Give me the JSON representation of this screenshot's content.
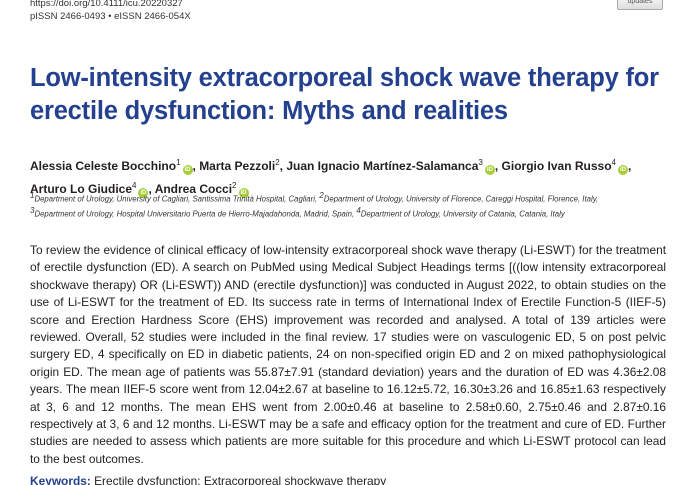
{
  "header": {
    "doi": "https://doi.org/10.4111/icu.20220327",
    "issn": "pISSN 2466-0493 • eISSN 2466-054X",
    "badge": "updates"
  },
  "title": "Low-intensity extracorporeal shock wave therapy for erectile dysfunction: Myths and realities",
  "authors": [
    {
      "name": "Alessia Celeste Bocchino",
      "sup": "1"
    },
    {
      "name": "Marta Pezzoli",
      "sup": "2"
    },
    {
      "name": "Juan Ignacio Martínez-Salamanca",
      "sup": "3"
    },
    {
      "name": "Giorgio Ivan Russo",
      "sup": "4"
    },
    {
      "name": "Arturo Lo Giudice",
      "sup": "4"
    },
    {
      "name": "Andrea Cocci",
      "sup": "2"
    }
  ],
  "affiliations": [
    {
      "sup": "1",
      "text": "Department of Urology, University of Cagliari, Santissima Trinità Hospital, Cagliari, "
    },
    {
      "sup": "2",
      "text": "Department of Urology, University of Florence, Careggi Hospital, Florence, Italy, "
    },
    {
      "sup": "3",
      "text": "Department of Urology, Hospital Universitario Puerta de Hierro-Majadahonda, Madrid, Spain, "
    },
    {
      "sup": "4",
      "text": "Department of Urology, University of Catania, Catania, Italy"
    }
  ],
  "abstract": "To review the evidence of clinical efficacy of low-intensity extracorporeal shock wave therapy (Li-ESWT) for the treatment of erectile dysfunction (ED). A search on PubMed using Medical Subject Headings terms [((low intensity extracorporeal shockwave therapy) OR (Li-ESWT)) AND (erectile dysfunction)] was conducted in August 2022, to obtain studies on the use of Li-ESWT for the treatment of ED. Its success rate in terms of International Index of Erectile Function-5 (IIEF-5) score and Erection Hardness Score (EHS) improvement was recorded and analysed. A total of 139 articles were reviewed. Overall, 52 studies were included in the final review. 17 studies were on vasculogenic ED, 5 on post pelvic surgery ED, 4 specifically on ED in diabetic patients, 24 on non-specified origin ED and 2 on mixed pathophysiological origin ED. The mean age of patients was 55.87±7.91 (standard deviation) years and the duration of ED was 4.36±2.08 years. The mean IIEF-5 score went from 12.04±2.67 at baseline to 16.12±5.72, 16.30±3.26 and 16.85±1.63 respectively at 3, 6 and 12 months. The mean EHS went from 2.00±0.46 at baseline to 2.58±0.60, 2.75±0.46 and 2.87±0.16 respectively at 3, 6 and 12 months. Li-ESWT may be a safe and efficacy option for the treatment and cure of ED. Further studies are needed to assess which patients are more suitable for this procedure and which Li-ESWT protocol can lead to the best outcomes.",
  "keywords": {
    "label": "Keywords:",
    "text": "Erectile dysfunction; Extracorporeal shockwave therapy"
  }
}
